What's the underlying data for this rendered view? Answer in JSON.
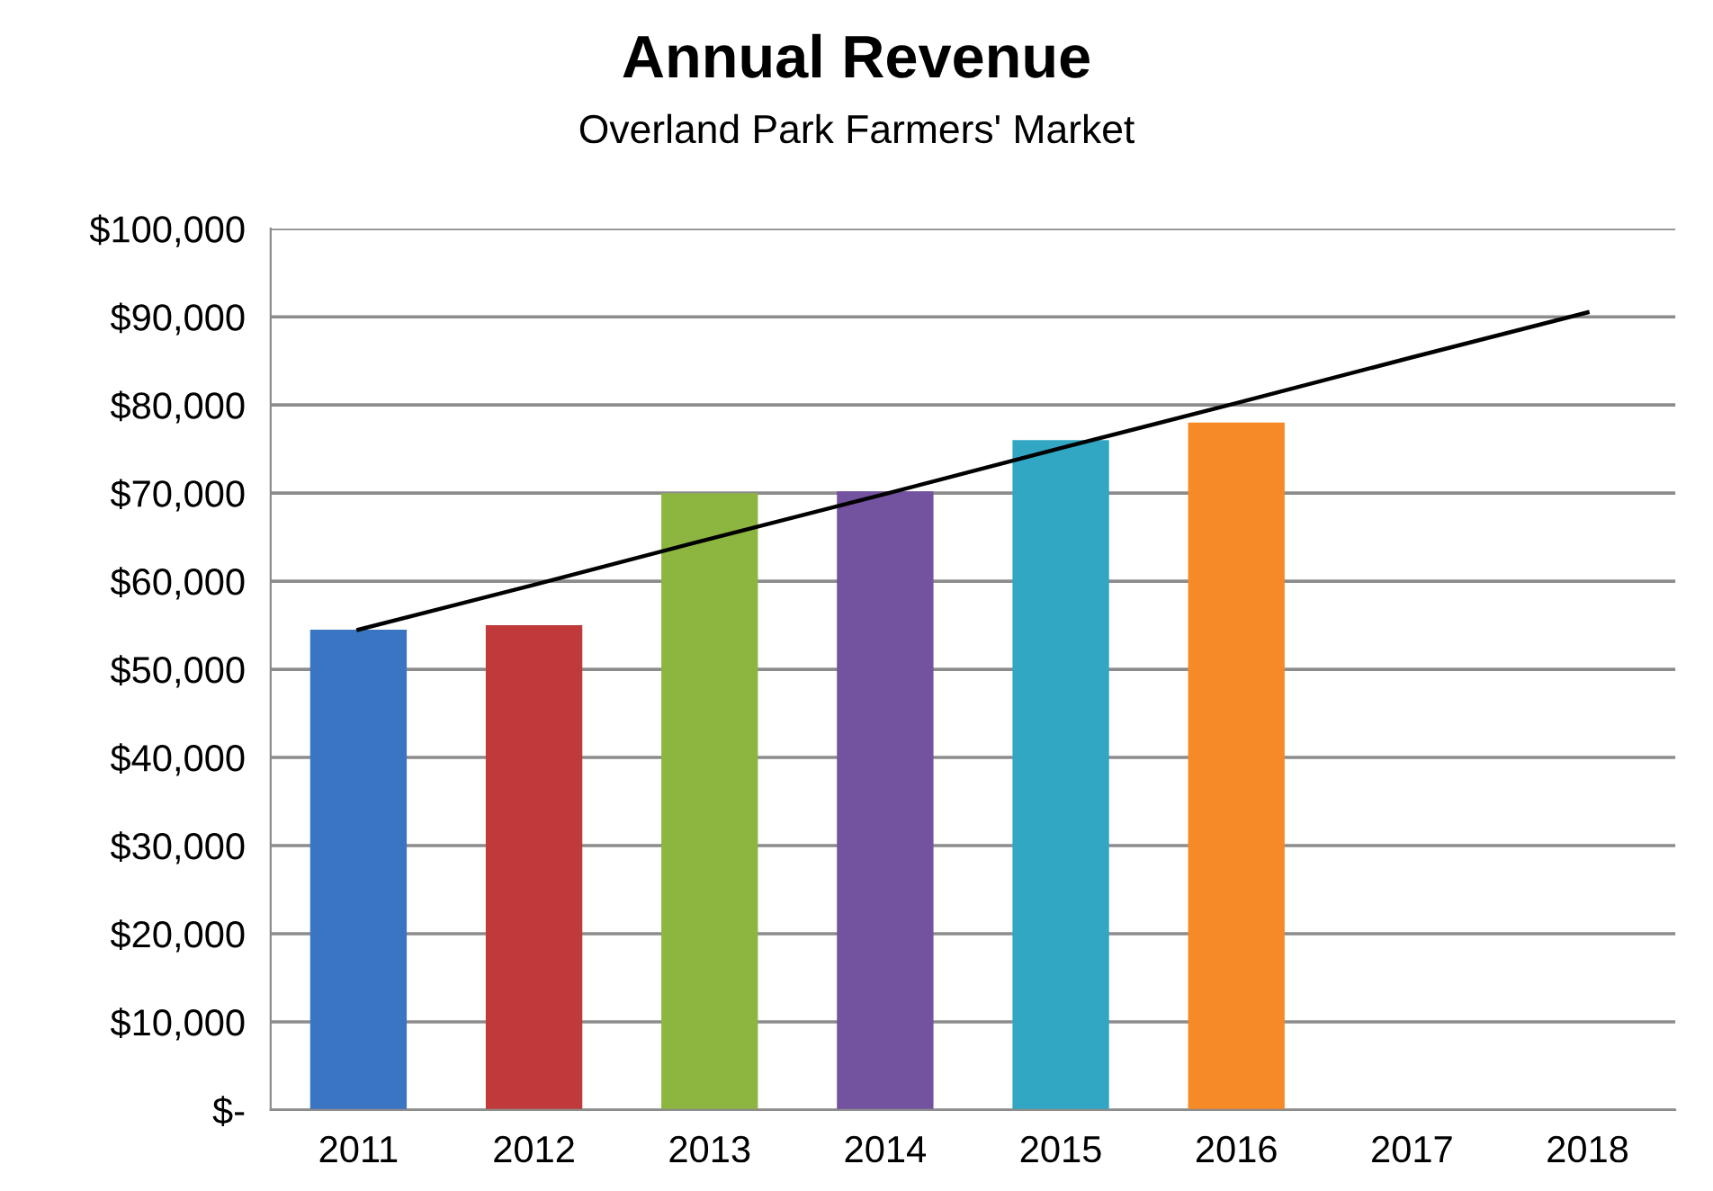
{
  "chart_data": {
    "type": "bar",
    "title": "Annual Revenue",
    "subtitle": "Overland Park Farmers' Market",
    "categories": [
      "2011",
      "2012",
      "2013",
      "2014",
      "2015",
      "2016",
      "2017",
      "2018"
    ],
    "series": [
      {
        "colors": [
          "#3a75c4",
          "#c0393b",
          "#8db640",
          "#7352a0",
          "#31a7c4",
          "#f58a26",
          "#000000",
          "#000000"
        ],
        "values": [
          54500,
          55000,
          70000,
          70200,
          76000,
          78000,
          null,
          null
        ]
      },
      {
        "type": "line",
        "color": "#000000",
        "values": [
          54500,
          59600,
          64800,
          69900,
          75100,
          80200,
          85400,
          90500
        ]
      }
    ],
    "ylim": [
      0,
      100000
    ],
    "yticks": [
      {
        "value": 0,
        "label": "$-"
      },
      {
        "value": 10000,
        "label": "$10,000"
      },
      {
        "value": 20000,
        "label": "$20,000"
      },
      {
        "value": 30000,
        "label": "$30,000"
      },
      {
        "value": 40000,
        "label": "$40,000"
      },
      {
        "value": 50000,
        "label": "$50,000"
      },
      {
        "value": 60000,
        "label": "$60,000"
      },
      {
        "value": 70000,
        "label": "$70,000"
      },
      {
        "value": 80000,
        "label": "$80,000"
      },
      {
        "value": 90000,
        "label": "$90,000"
      },
      {
        "value": 100000,
        "label": "$100,000"
      }
    ],
    "grid": "y",
    "marker": "none",
    "line_style": "solid"
  }
}
